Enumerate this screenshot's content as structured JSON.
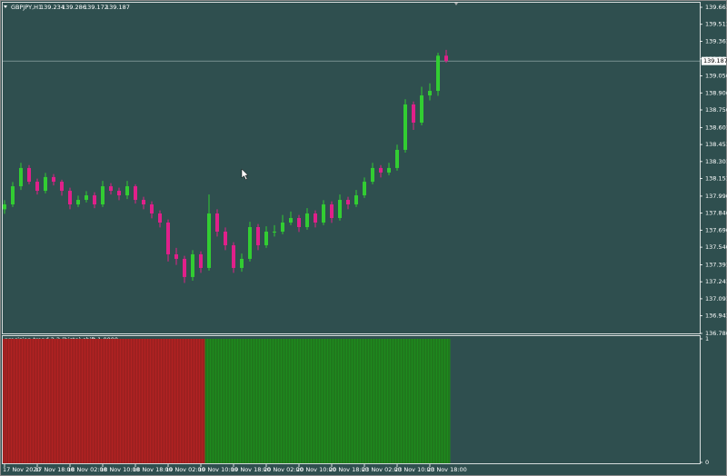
{
  "chart_data": {
    "type": "candlestick",
    "symbol": "GBPJPY,H1",
    "header_values": [
      139.234,
      139.286,
      139.172,
      139.187
    ],
    "current_price": 139.187,
    "up_color": "#32cd32",
    "down_color": "#e0208a",
    "ylim": [
      136.786,
      139.701
    ],
    "yticks": [
      139.661,
      139.511,
      139.361,
      139.206,
      139.056,
      138.906,
      138.756,
      138.601,
      138.451,
      138.301,
      138.151,
      137.996,
      137.846,
      137.696,
      137.546,
      137.391,
      137.241,
      137.091,
      136.941,
      136.786
    ],
    "categories": [
      "17 Nov 2020",
      null,
      null,
      null,
      "17 Nov 18:00",
      null,
      null,
      null,
      "18 Nov 02:00",
      null,
      null,
      null,
      "18 Nov 10:00",
      null,
      null,
      null,
      "18 Nov 18:00",
      null,
      null,
      null,
      "19 Nov 02:00",
      null,
      null,
      null,
      "19 Nov 10:00",
      null,
      null,
      null,
      "19 Nov 18:00",
      null,
      null,
      null,
      "20 Nov 02:00",
      null,
      null,
      null,
      "20 Nov 10:00",
      null,
      null,
      null,
      "20 Nov 18:00",
      null,
      null,
      null,
      "23 Nov 02:00",
      null,
      null,
      null,
      "23 Nov 10:00",
      null,
      null,
      null,
      "23 Nov 18:00",
      null,
      null
    ],
    "candles": [
      [
        137.88,
        137.96,
        137.84,
        137.923
      ],
      [
        137.923,
        138.12,
        137.9,
        138.083
      ],
      [
        138.083,
        138.29,
        138.05,
        138.244
      ],
      [
        138.244,
        138.27,
        138.1,
        138.123
      ],
      [
        138.123,
        138.15,
        138.01,
        138.043
      ],
      [
        138.043,
        138.2,
        138.02,
        138.164
      ],
      [
        138.164,
        138.19,
        138.09,
        138.123
      ],
      [
        138.123,
        138.14,
        138.0,
        138.043
      ],
      [
        138.043,
        138.07,
        137.88,
        137.923
      ],
      [
        137.923,
        138.0,
        137.9,
        137.963
      ],
      [
        137.963,
        138.04,
        137.94,
        138.003
      ],
      [
        138.003,
        138.03,
        137.89,
        137.923
      ],
      [
        137.923,
        138.13,
        137.9,
        138.083
      ],
      [
        138.083,
        138.11,
        138.01,
        138.043
      ],
      [
        138.043,
        138.07,
        137.96,
        138.003
      ],
      [
        138.003,
        138.13,
        137.97,
        138.083
      ],
      [
        138.083,
        138.1,
        137.93,
        137.963
      ],
      [
        137.963,
        137.99,
        137.88,
        137.923
      ],
      [
        137.923,
        137.95,
        137.8,
        137.843
      ],
      [
        137.843,
        137.87,
        137.72,
        137.763
      ],
      [
        137.763,
        137.79,
        137.42,
        137.483
      ],
      [
        137.483,
        137.54,
        137.39,
        137.443
      ],
      [
        137.443,
        137.47,
        137.23,
        137.283
      ],
      [
        137.283,
        137.52,
        137.25,
        137.483
      ],
      [
        137.483,
        137.51,
        137.32,
        137.363
      ],
      [
        137.363,
        138.01,
        137.34,
        137.843
      ],
      [
        137.843,
        137.88,
        137.64,
        137.683
      ],
      [
        137.683,
        137.72,
        137.52,
        137.563
      ],
      [
        137.563,
        137.59,
        137.32,
        137.363
      ],
      [
        137.363,
        137.49,
        137.33,
        137.443
      ],
      [
        137.443,
        137.77,
        137.42,
        137.723
      ],
      [
        137.723,
        137.75,
        137.52,
        137.563
      ],
      [
        137.563,
        137.73,
        137.54,
        137.683
      ],
      [
        137.683,
        137.74,
        137.64,
        137.683
      ],
      [
        137.683,
        137.83,
        137.66,
        137.763
      ],
      [
        137.763,
        137.86,
        137.74,
        137.803
      ],
      [
        137.803,
        137.83,
        137.68,
        137.723
      ],
      [
        137.723,
        137.89,
        137.7,
        137.843
      ],
      [
        137.843,
        137.87,
        137.72,
        137.763
      ],
      [
        137.763,
        137.96,
        137.74,
        137.923
      ],
      [
        137.923,
        137.95,
        137.76,
        137.803
      ],
      [
        137.803,
        138.01,
        137.78,
        137.963
      ],
      [
        137.963,
        137.99,
        137.88,
        137.923
      ],
      [
        137.923,
        138.05,
        137.9,
        138.003
      ],
      [
        138.003,
        138.16,
        137.98,
        138.123
      ],
      [
        138.123,
        138.29,
        138.1,
        138.244
      ],
      [
        138.244,
        138.27,
        138.16,
        138.204
      ],
      [
        138.204,
        138.29,
        138.18,
        138.244
      ],
      [
        138.244,
        138.45,
        138.22,
        138.404
      ],
      [
        138.404,
        138.85,
        138.38,
        138.804
      ],
      [
        138.804,
        138.83,
        138.58,
        138.644
      ],
      [
        138.644,
        138.96,
        138.62,
        138.884
      ],
      [
        138.884,
        138.99,
        138.84,
        138.924
      ],
      [
        138.924,
        139.26,
        138.88,
        139.234
      ],
      [
        139.234,
        139.286,
        139.172,
        139.187
      ]
    ],
    "indicator": {
      "type": "histogram",
      "title": "precision trend 2.2 (histo) shift 1.0000",
      "ylim": [
        0,
        1
      ],
      "yticks": [
        1,
        0
      ],
      "series": [
        {
          "color": "#b22222",
          "values": [
            1,
            1,
            1,
            1,
            1,
            1,
            1,
            1,
            1,
            1,
            1,
            1,
            1,
            1,
            1,
            1,
            1,
            1,
            1,
            1,
            1,
            1,
            1,
            1,
            1,
            null,
            null,
            null,
            null,
            null,
            null,
            null,
            null,
            null,
            null,
            null,
            null,
            null,
            null,
            null,
            null,
            null,
            null,
            null,
            null,
            null,
            null,
            null,
            null,
            null,
            null,
            null,
            null,
            null,
            null
          ]
        },
        {
          "color": "#1e8a1e",
          "values": [
            null,
            null,
            null,
            null,
            null,
            null,
            null,
            null,
            null,
            null,
            null,
            null,
            null,
            null,
            null,
            null,
            null,
            null,
            null,
            null,
            null,
            null,
            null,
            null,
            null,
            1,
            1,
            1,
            1,
            1,
            1,
            1,
            1,
            1,
            1,
            1,
            1,
            1,
            1,
            1,
            1,
            1,
            1,
            1,
            1,
            1,
            1,
            1,
            1,
            1,
            1,
            1,
            1,
            1,
            1
          ]
        }
      ]
    }
  }
}
